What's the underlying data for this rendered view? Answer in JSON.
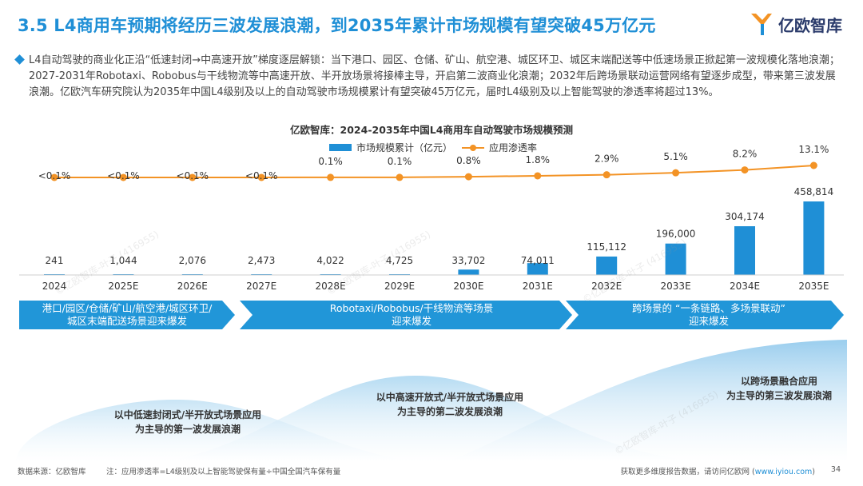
{
  "header": {
    "title": "3.5 L4商用车预期将经历三波发展浪潮，到2035年累计市场规模有望突破45万亿元",
    "logo_text": "亿欧智库"
  },
  "summary": {
    "text": "L4自动驾驶的商业化正沿“低速封闭→中高速开放”梯度逐层解锁：当下港口、园区、仓储、矿山、航空港、城区环卫、城区末端配送等中低速场景正掀起第一波规模化落地浪潮；2027-2031年Robotaxi、Robobus与干线物流等中高速开放、半开放场景将接棒主导，开启第二波商业化浪潮；2032年后跨场景联动运营网络有望逐步成型，带来第三波发展浪潮。亿欧汽车研究院认为2035年中国L4级别及以上的自动驾驶市场规模累计有望突破45万亿元，届时L4级别及以上智能驾驶的渗透率将超过13%。"
  },
  "chart_data": {
    "type": "bar+line",
    "title": "亿欧智库：2024-2035年中国L4商用车自动驾驶市场规模预测",
    "categories": [
      "2024",
      "2025E",
      "2026E",
      "2027E",
      "2028E",
      "2029E",
      "2030E",
      "2031E",
      "2032E",
      "2033E",
      "2034E",
      "2035E"
    ],
    "series": [
      {
        "name": "市场规模累计（亿元）",
        "type": "bar",
        "color": "#1f8fd6",
        "values": [
          241,
          1044,
          2076,
          2473,
          4022,
          4725,
          33702,
          74011,
          115112,
          196000,
          304174,
          458814
        ],
        "labels": [
          "241",
          "1,044",
          "2,076",
          "2,473",
          "4,022",
          "4,725",
          "33,702",
          "74,011",
          "115,112",
          "196,000",
          "304,174",
          "458,814"
        ]
      },
      {
        "name": "应用渗透率",
        "type": "line",
        "color": "#f39325",
        "values": [
          0.05,
          0.05,
          0.05,
          0.05,
          0.1,
          0.1,
          0.8,
          1.8,
          2.9,
          5.1,
          8.2,
          13.1
        ],
        "labels": [
          "<0.1%",
          "<0.1%",
          "<0.1%",
          "<0.1%",
          "0.1%",
          "0.1%",
          "0.8%",
          "1.8%",
          "2.9%",
          "5.1%",
          "8.2%",
          "13.1%"
        ]
      }
    ],
    "ylim_bar": [
      0,
      470000
    ],
    "ylim_line": [
      0,
      13.1
    ],
    "legend_position": "top-center"
  },
  "phases": [
    {
      "label": "港口/园区/仓储/矿山/航空港/城区环卫/城区末端配送场景迎来爆发",
      "line1": "港口/园区/仓储/矿山/航空港/城区环卫/",
      "line2": "城区末端配送场景迎来爆发"
    },
    {
      "label": "Robotaxi/Robobus/干线物流等场景迎来爆发",
      "line1": "Robotaxi/Robobus/干线物流等场景",
      "line2": "迎来爆发"
    },
    {
      "label": "跨场景的“一条链路、多场景联动”迎来爆发",
      "line1": "跨场景的 “一条链路、多场景联动”",
      "line2": "迎来爆发"
    }
  ],
  "waves": [
    {
      "line1": "以中低速封闭式/半开放式场景应用",
      "line2": "为主导的第一波发展浪潮"
    },
    {
      "line1": "以中高速开放式/半开放式场景应用",
      "line2": "为主导的第二波发展浪潮"
    },
    {
      "line1": "以跨场景融合应用",
      "line2": "为主导的第三波发展浪潮"
    }
  ],
  "footer": {
    "source": "数据来源：亿欧智库",
    "note": "注：应用渗透率=L4级别及以上智能驾驶保有量÷中国全国汽车保有量",
    "more": "获取更多维度报告数据，请访问亿欧网 (",
    "link": "www.iyiou.com",
    "more_end": ")",
    "page": "34"
  },
  "watermark": "©亿欧智库-叶子 (416955)",
  "colors": {
    "accent": "#1f8fd6",
    "line": "#f39325",
    "phase_bg": "#2196d8"
  }
}
